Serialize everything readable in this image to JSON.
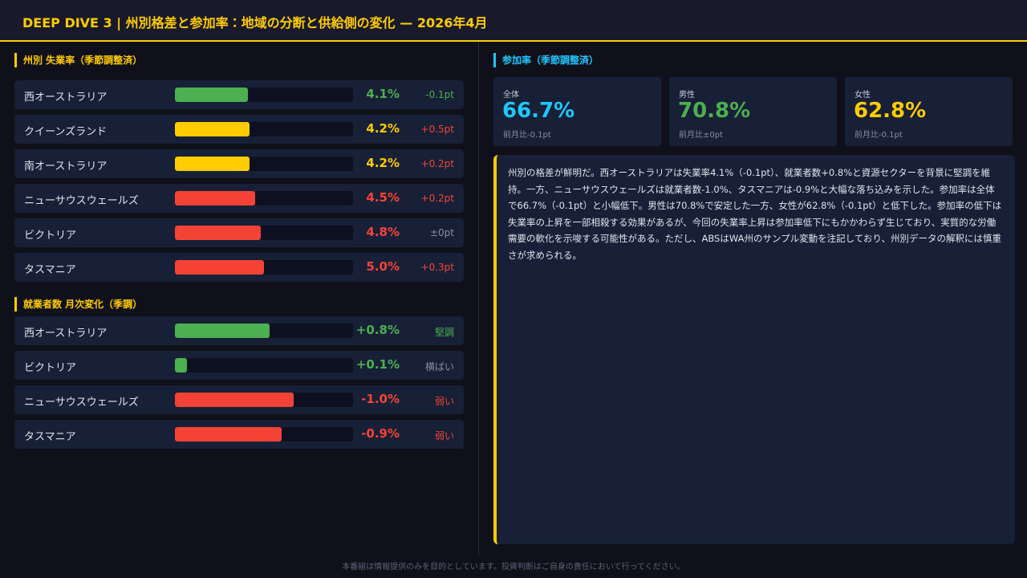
{
  "header": {
    "title": "DEEP DIVE 3 | 州別格差と参加率：地域の分断と供給側の変化 — 2026年4月"
  },
  "unemployment": {
    "title": "州別 失業率（季節調整済）",
    "xlim": [
      0,
      10
    ],
    "rows": [
      {
        "name": "西オーストラリア",
        "value": 4.1,
        "value_label": "4.1%",
        "change": "-0.1pt",
        "color": "#4caf50",
        "change_color": "#4caf50"
      },
      {
        "name": "クイーンズランド",
        "value": 4.2,
        "value_label": "4.2%",
        "change": "+0.5pt",
        "color": "#ffcc00",
        "change_color": "#f44336"
      },
      {
        "name": "南オーストラリア",
        "value": 4.2,
        "value_label": "4.2%",
        "change": "+0.2pt",
        "color": "#ffcc00",
        "change_color": "#f44336"
      },
      {
        "name": "ニューサウスウェールズ",
        "value": 4.5,
        "value_label": "4.5%",
        "change": "+0.2pt",
        "color": "#f44336",
        "change_color": "#f44336"
      },
      {
        "name": "ビクトリア",
        "value": 4.8,
        "value_label": "4.8%",
        "change": "±0pt",
        "color": "#f44336",
        "change_color": "#8a8fa3"
      },
      {
        "name": "タスマニア",
        "value": 5.0,
        "value_label": "5.0%",
        "change": "+0.3pt",
        "color": "#f44336",
        "change_color": "#f44336"
      }
    ]
  },
  "employment": {
    "title": "就業者数 月次変化（季調）",
    "xlim": [
      0,
      1.5
    ],
    "rows": [
      {
        "name": "西オーストラリア",
        "value": 0.8,
        "value_label": "+0.8%",
        "change": "堅調",
        "color": "#4caf50",
        "change_color": "#4caf50"
      },
      {
        "name": "ビクトリア",
        "value": 0.1,
        "value_label": "+0.1%",
        "change": "横ばい",
        "color": "#4caf50",
        "change_color": "#8a8fa3"
      },
      {
        "name": "ニューサウスウェールズ",
        "value": -1.0,
        "value_label": "-1.0%",
        "change": "弱い",
        "color": "#f44336",
        "change_color": "#f44336"
      },
      {
        "name": "タスマニア",
        "value": -0.9,
        "value_label": "-0.9%",
        "change": "弱い",
        "color": "#f44336",
        "change_color": "#f44336"
      }
    ]
  },
  "participation": {
    "title": "参加率（季節調整済）",
    "cards": [
      {
        "label": "全体",
        "value": "66.7%",
        "sub": "前月比-0.1pt",
        "color": "#1ec8ff"
      },
      {
        "label": "男性",
        "value": "70.8%",
        "sub": "前月比±0pt",
        "color": "#4caf50"
      },
      {
        "label": "女性",
        "value": "62.8%",
        "sub": "前月比-0.1pt",
        "color": "#ffcc00"
      }
    ]
  },
  "commentary": "州別の格差が鮮明だ。西オーストラリアは失業率4.1%（-0.1pt）、就業者数+0.8%と資源セクターを背景に堅調を維持。一方、ニューサウスウェールズは就業者数-1.0%、タスマニアは-0.9%と大幅な落ち込みを示した。参加率は全体で66.7%（-0.1pt）と小幅低下。男性は70.8%で安定した一方、女性が62.8%（-0.1pt）と低下した。参加率の低下は失業率の上昇を一部相殺する効果があるが、今回の失業率上昇は参加率低下にもかかわらず生じており、実質的な労働需要の軟化を示唆する可能性がある。ただし、ABSはWA州のサンプル変動を注記しており、州別データの解釈には慎重さが求められる。",
  "footer": "本番組は情報提供のみを目的としています。投資判断はご自身の責任において行ってください。"
}
